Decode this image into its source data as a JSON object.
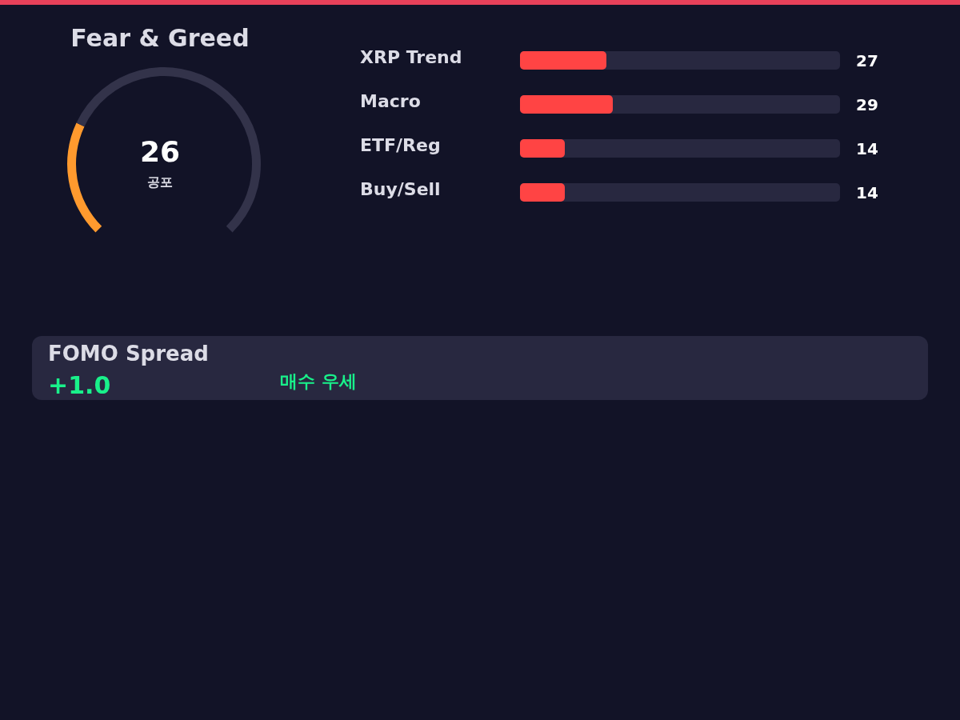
{
  "chart_data": [
    {
      "type": "donut",
      "title": "Fear & Greed",
      "categories": [
        null,
        null
      ],
      "values": [
        26,
        74
      ],
      "colors": [
        "#ff9a2e",
        "#33334a"
      ],
      "annotations": [
        "26",
        "공포"
      ]
    },
    {
      "type": "bar",
      "orientation": "horizontal",
      "categories": [
        "XRP Trend",
        "Macro",
        "ETF/Reg",
        "Buy/Sell"
      ],
      "values": [
        27,
        29,
        14,
        14
      ],
      "color": "#ff4444",
      "xlim": [
        0,
        100
      ],
      "data_labels": true,
      "tick_labels": "y"
    },
    {
      "type": "other",
      "title": "FOMO Spread",
      "annotations": [
        "+1.0",
        "매수 우세"
      ]
    }
  ]
}
